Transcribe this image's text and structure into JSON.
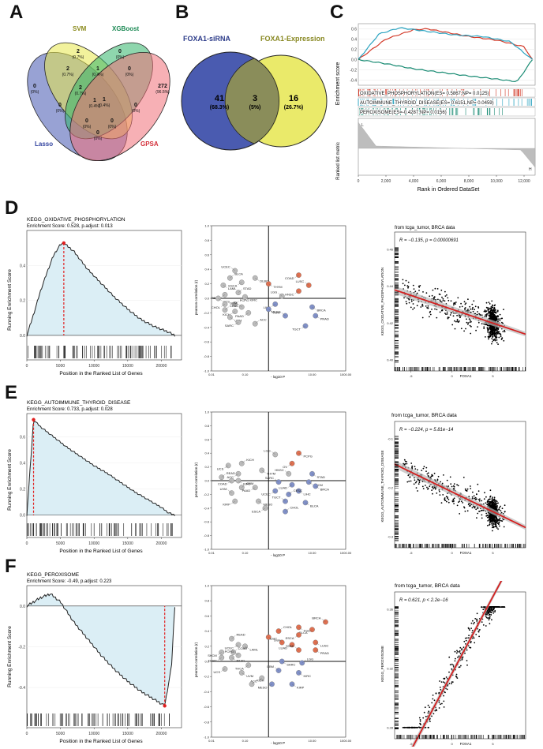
{
  "panel_letters": [
    "A",
    "B",
    "C",
    "D",
    "E",
    "F"
  ],
  "venn4": {
    "sets": [
      {
        "name": "SVM",
        "color": "#8b8b1e"
      },
      {
        "name": "XGBoost",
        "color": "#1d8a55"
      },
      {
        "name": "Lasso",
        "color": "#3344a0"
      },
      {
        "name": "GPSA",
        "color": "#d3303a"
      }
    ],
    "regions": [
      {
        "count": "2",
        "pct": "(0.7%)"
      },
      {
        "count": "0",
        "pct": "(0%)"
      },
      {
        "count": "2",
        "pct": "(0.7%)"
      },
      {
        "count": "1",
        "pct": "(0.4%)"
      },
      {
        "count": "0",
        "pct": "(0%)"
      },
      {
        "count": "0",
        "pct": "(0%)"
      },
      {
        "count": "2",
        "pct": "(0.7%)"
      },
      {
        "count": "1",
        "pct": "(0.4%)"
      },
      {
        "count": "272",
        "pct": "(96.5%)"
      },
      {
        "count": "0",
        "pct": "(0%)"
      },
      {
        "count": "1",
        "pct": "(0.4%)"
      },
      {
        "count": "0",
        "pct": "(0%)"
      },
      {
        "count": "0",
        "pct": "(0%)"
      },
      {
        "count": "0",
        "pct": "(0%)"
      },
      {
        "count": "0",
        "pct": "(0%)"
      }
    ]
  },
  "venn2": {
    "left": {
      "name": "FOXA1-siRNA",
      "count": "41",
      "pct": "(68.3%)",
      "color": "#4a5bb0"
    },
    "both": {
      "count": "3",
      "pct": "(5%)"
    },
    "right": {
      "name": "FOXA1-Expression",
      "count": "16",
      "pct": "(26.7%)",
      "color": "#e8e85a"
    }
  },
  "chart_data": [
    {
      "id": "C-gsea-multi",
      "type": "line",
      "ylabel": "Enrichment score",
      "ylabel2": "Ranked list metric",
      "xlabel": "Rank in Ordered DataSet",
      "xticks": [
        "0",
        "2,000",
        "4,000",
        "6,000",
        "8,000",
        "10,000",
        "12,000"
      ],
      "yticks": [
        "0.6",
        "0.4",
        "0.2",
        "0.0",
        "-0.2",
        "-0.4"
      ],
      "series": [
        {
          "name": "OXIDATIVE_PHOSPHORYLATION(ES= 0.5867,NP= 0.0125)",
          "color": "#d33b2a",
          "x": [
            0,
            2000,
            4000,
            5000,
            6000,
            8000,
            10000,
            12000,
            12600
          ],
          "y": [
            0,
            0.4,
            0.58,
            0.6,
            0.55,
            0.45,
            0.38,
            0.25,
            0
          ]
        },
        {
          "name": "AUTOIMMUNE_THYROID_DISEASE(ES= 0.6151,NP= 0.0459)",
          "color": "#2aa3c0",
          "x": [
            0,
            1500,
            3000,
            5000,
            7000,
            9000,
            11000,
            12600
          ],
          "y": [
            0,
            0.5,
            0.62,
            0.55,
            0.48,
            0.45,
            0.35,
            0
          ]
        },
        {
          "name": "PEROXISOME(ES=-0.4287,NP= 0.0156)",
          "color": "#178a72",
          "x": [
            0,
            2000,
            4000,
            6000,
            8000,
            10000,
            11500,
            12600
          ],
          "y": [
            0,
            -0.08,
            -0.18,
            -0.25,
            -0.32,
            -0.38,
            -0.43,
            0
          ]
        }
      ],
      "ranked_labels": [
        "L",
        "H"
      ]
    },
    {
      "id": "D-gsea",
      "type": "line",
      "title": "KEGG_OXIDATIVE_PHOSPHORYLATION",
      "subtitle": "Enrichment Score: 0.528, p.adjust: 0.013",
      "ylabel": "Running Enrichment Score",
      "xlabel": "Position in the Ranked List of Genes",
      "xticks": [
        "0",
        "5000",
        "10000",
        "15000",
        "20000"
      ],
      "yticks": [
        "0.0",
        "0.2",
        "0.4"
      ],
      "ylim": [
        -0.05,
        0.6
      ],
      "xlim": [
        0,
        23000
      ],
      "peak_x": 5500,
      "x": [
        0,
        1000,
        2000,
        3000,
        4000,
        5000,
        5500,
        7000,
        9000,
        11000,
        13000,
        15000,
        17000,
        19000,
        21000,
        22000
      ],
      "y": [
        0,
        0.12,
        0.25,
        0.36,
        0.46,
        0.52,
        0.528,
        0.48,
        0.38,
        0.3,
        0.22,
        0.15,
        0.09,
        0.05,
        0.02,
        0
      ]
    },
    {
      "id": "D-volcano",
      "type": "scatter",
      "xlabel": "- log10 P",
      "ylabel": "pearson correlation (r)",
      "xticks": [
        "0.01",
        "0.10",
        "10.00",
        "1000.00"
      ],
      "yticks": [
        "1.0",
        "0.8",
        "0.6",
        "0.4",
        "0.2",
        "0.0",
        "-0.2",
        "-0.4",
        "-0.6",
        "-0.8",
        "-1.0"
      ],
      "points": [
        {
          "label": "UCEC",
          "x": 0.7,
          "y": 0.38,
          "c": "#bbbbbb"
        },
        {
          "label": "DLBC",
          "x": 1.3,
          "y": 0.28,
          "c": "#bbbbbb"
        },
        {
          "label": "COAD",
          "x": 2.6,
          "y": 0.32,
          "c": "#e07050"
        },
        {
          "label": "BLCA",
          "x": 0.55,
          "y": 0.28,
          "c": "#bbbbbb"
        },
        {
          "label": "ESCA",
          "x": 0.9,
          "y": 0.22,
          "c": "#bbbbbb"
        },
        {
          "label": "THYM",
          "x": 1.7,
          "y": 0.2,
          "c": "#e07050"
        },
        {
          "label": "LUSC",
          "x": 2.9,
          "y": 0.18,
          "c": "#e07050"
        },
        {
          "label": "LAML",
          "x": 0.35,
          "y": 0.18,
          "c": "#bbbbbb"
        },
        {
          "label": "HNSC",
          "x": 2.6,
          "y": 0.1,
          "c": "#e07050"
        },
        {
          "label": "STAD",
          "x": 0.8,
          "y": 0.08,
          "c": "#bbbbbb"
        },
        {
          "label": "READ",
          "x": 0.4,
          "y": 0.05,
          "c": "#bbbbbb"
        },
        {
          "label": "KIRC",
          "x": 1.0,
          "y": 0.02,
          "c": "#bbbbbb"
        },
        {
          "label": "LGG",
          "x": 2.1,
          "y": 0.03,
          "c": "#bbbbbb"
        },
        {
          "label": "UCS",
          "x": 0.2,
          "y": 0.0,
          "c": "#bbbbbb"
        },
        {
          "label": "CHOL",
          "x": 0.4,
          "y": -0.08,
          "c": "#bbbbbb"
        },
        {
          "label": "PCPG",
          "x": 0.7,
          "y": -0.08,
          "c": "#bbbbbb"
        },
        {
          "label": "LIHC",
          "x": 1.9,
          "y": -0.08,
          "c": "#8090c8"
        },
        {
          "label": "BRCA",
          "x": 3.0,
          "y": -0.12,
          "c": "#8090c8"
        },
        {
          "label": "GBM",
          "x": 0.9,
          "y": -0.12,
          "c": "#bbbbbb"
        },
        {
          "label": "KIRP",
          "x": 1.7,
          "y": -0.15,
          "c": "#8090c8"
        },
        {
          "label": "KICH",
          "x": 0.7,
          "y": -0.18,
          "c": "#bbbbbb"
        },
        {
          "label": "CESC",
          "x": 0.4,
          "y": -0.16,
          "c": "#bbbbbb"
        },
        {
          "label": "PAAD",
          "x": 1.1,
          "y": -0.2,
          "c": "#bbbbbb"
        },
        {
          "label": "UVM",
          "x": 0.55,
          "y": -0.26,
          "c": "#bbbbbb"
        },
        {
          "label": "MESO",
          "x": 2.2,
          "y": -0.24,
          "c": "#8090c8"
        },
        {
          "label": "PRAD",
          "x": 3.1,
          "y": -0.24,
          "c": "#8090c8"
        },
        {
          "label": "SARC",
          "x": 0.8,
          "y": -0.33,
          "c": "#bbbbbb"
        },
        {
          "label": "ACC",
          "x": 1.3,
          "y": -0.35,
          "c": "#bbbbbb"
        },
        {
          "label": "TGCT",
          "x": 2.8,
          "y": -0.38,
          "c": "#8090c8"
        }
      ]
    },
    {
      "id": "D-scatter",
      "type": "scatter",
      "title": "from tcga_tumor, BRCA data",
      "stat": "R = −0.135, p = 0.00000691",
      "xlabel": "FOXA1",
      "ylabel": "KEGG_OXIDATIVE_PHOSPHORYLATION",
      "xticks": [
        "-5",
        "0",
        "5"
      ],
      "yticks": [
        "0.46",
        "0.44",
        "0.42",
        "0.40"
      ],
      "fit_color": "#d42020"
    },
    {
      "id": "E-gsea",
      "type": "line",
      "title": "KEGG_AUTOIMMUNE_THYROID_DISEASE",
      "subtitle": "Enrichment Score: 0.733, p.adjust: 0.028",
      "ylabel": "Running Enrichment Score",
      "xlabel": "Position in the Ranked List of Genes",
      "xticks": [
        "0",
        "5000",
        "10000",
        "15000",
        "20000"
      ],
      "yticks": [
        "0.0",
        "0.2",
        "0.4",
        "0.6"
      ],
      "ylim": [
        -0.05,
        0.78
      ],
      "xlim": [
        0,
        23000
      ],
      "peak_x": 1000,
      "x": [
        0,
        1000,
        2000,
        4000,
        6000,
        8000,
        10000,
        12000,
        14000,
        16000,
        18000,
        20000,
        21000,
        22000
      ],
      "y": [
        0,
        0.733,
        0.68,
        0.6,
        0.52,
        0.45,
        0.38,
        0.32,
        0.25,
        0.18,
        0.12,
        0.06,
        0.02,
        0
      ]
    },
    {
      "id": "E-volcano",
      "type": "scatter",
      "xlabel": "- log10 P",
      "ylabel": "pearson correlation (r)",
      "xticks": [
        "0.01",
        "0.10",
        "10.00",
        "1000.00"
      ],
      "yticks": [
        "1.0",
        "0.8",
        "0.6",
        "0.4",
        "0.2",
        "0.0",
        "-0.2",
        "-0.4",
        "-0.6",
        "-0.8",
        "-1.0"
      ],
      "points": [
        {
          "label": "LGG",
          "x": 1.9,
          "y": 0.38,
          "c": "#bbbbbb"
        },
        {
          "label": "PCPG",
          "x": 2.6,
          "y": 0.4,
          "c": "#e07050"
        },
        {
          "label": "OV",
          "x": 2.4,
          "y": 0.25,
          "c": "#e07050"
        },
        {
          "label": "KICH",
          "x": 0.9,
          "y": 0.25,
          "c": "#bbbbbb"
        },
        {
          "label": "UCS",
          "x": 0.5,
          "y": 0.22,
          "c": "#bbbbbb"
        },
        {
          "label": "THYM",
          "x": 1.5,
          "y": 0.15,
          "c": "#bbbbbb"
        },
        {
          "label": "HNSC",
          "x": 2.3,
          "y": 0.1,
          "c": "#bbbbbb"
        },
        {
          "label": "STAD",
          "x": 3.0,
          "y": 0.1,
          "c": "#8090c8"
        },
        {
          "label": "ACC",
          "x": 0.8,
          "y": 0.1,
          "c": "#bbbbbb"
        },
        {
          "label": "READ",
          "x": 0.3,
          "y": 0.05,
          "c": "#bbbbbb"
        },
        {
          "label": "COAD",
          "x": 0.6,
          "y": 0.0,
          "c": "#bbbbbb"
        },
        {
          "label": "KIRC",
          "x": 0.8,
          "y": 0.0,
          "c": "#bbbbbb"
        },
        {
          "label": "SARC",
          "x": 2.0,
          "y": -0.02,
          "c": "#8090c8"
        },
        {
          "label": "SKCM",
          "x": 2.9,
          "y": -0.02,
          "c": "#8090c8"
        },
        {
          "label": "LUAD",
          "x": 2.4,
          "y": -0.06,
          "c": "#8090c8"
        },
        {
          "label": "GBM",
          "x": 0.9,
          "y": -0.1,
          "c": "#bbbbbb"
        },
        {
          "label": "PAAD",
          "x": 1.3,
          "y": -0.1,
          "c": "#bbbbbb"
        },
        {
          "label": "BRCA",
          "x": 3.1,
          "y": -0.08,
          "c": "#8090c8"
        },
        {
          "label": "UVM",
          "x": 0.6,
          "y": -0.18,
          "c": "#bbbbbb"
        },
        {
          "label": "LIHC",
          "x": 2.6,
          "y": -0.15,
          "c": "#8090c8"
        },
        {
          "label": "UCEC",
          "x": 1.9,
          "y": -0.15,
          "c": "#8090c8"
        },
        {
          "label": "CESC",
          "x": 2.3,
          "y": -0.2,
          "c": "#8090c8"
        },
        {
          "label": "KIRP",
          "x": 0.7,
          "y": -0.3,
          "c": "#bbbbbb"
        },
        {
          "label": "MESO",
          "x": 1.4,
          "y": -0.3,
          "c": "#bbbbbb"
        },
        {
          "label": "TGCT",
          "x": 2.2,
          "y": -0.3,
          "c": "#8090c8"
        },
        {
          "label": "BLCA",
          "x": 2.8,
          "y": -0.32,
          "c": "#8090c8"
        },
        {
          "label": "ESCA",
          "x": 1.6,
          "y": -0.4,
          "c": "#bbbbbb"
        },
        {
          "label": "CHOL",
          "x": 2.2,
          "y": -0.45,
          "c": "#8090c8"
        }
      ]
    },
    {
      "id": "E-scatter",
      "type": "scatter",
      "title": "from tcga_tumor, BRCA data",
      "stat": "R = −0.224, p = 5.81e−14",
      "xlabel": "FOXA1",
      "ylabel": "KEGG_AUTOIMMUNE_THYROID_DISEASE",
      "xticks": [
        "-5",
        "0",
        "5"
      ],
      "yticks": [
        "-0.1",
        "-0.2",
        "-0.3"
      ],
      "fit_color": "#d42020"
    },
    {
      "id": "F-gsea",
      "type": "line",
      "title": "KEGG_PEROXISOME",
      "subtitle": "Enrichment Score: -0.49, p.adjust: 0.223",
      "ylabel": "Running Enrichment Score",
      "xlabel": "Position in the Ranked List of Genes",
      "xticks": [
        "0",
        "5000",
        "10000",
        "15000",
        "20000"
      ],
      "yticks": [
        "0.0",
        "-0.2",
        "-0.4"
      ],
      "ylim": [
        -0.52,
        0.1
      ],
      "xlim": [
        0,
        23000
      ],
      "peak_x": 20500,
      "x": [
        0,
        2000,
        3500,
        5000,
        7000,
        9000,
        11000,
        13000,
        15000,
        17000,
        19000,
        20500,
        21500,
        22000
      ],
      "y": [
        0,
        0.04,
        0.06,
        0.02,
        -0.08,
        -0.16,
        -0.24,
        -0.31,
        -0.37,
        -0.42,
        -0.46,
        -0.49,
        -0.3,
        0
      ]
    },
    {
      "id": "F-volcano",
      "type": "scatter",
      "xlabel": "- log10 P",
      "ylabel": "pearson correlation (r)",
      "xticks": [
        "0.01",
        "0.10",
        "10.00",
        "1000.00"
      ],
      "yticks": [
        "1.0",
        "0.8",
        "0.6",
        "0.4",
        "0.2",
        "0.0",
        "-0.2",
        "-0.4",
        "-0.6",
        "-0.8",
        "-1.0"
      ],
      "points": [
        {
          "label": "BRCA",
          "x": 3.4,
          "y": 0.52,
          "c": "#e07050"
        },
        {
          "label": "TGCT",
          "x": 2.6,
          "y": 0.45,
          "c": "#e07050"
        },
        {
          "label": "BLCA",
          "x": 3.0,
          "y": 0.42,
          "c": "#e07050"
        },
        {
          "label": "CHOL",
          "x": 2.0,
          "y": 0.4,
          "c": "#e07050"
        },
        {
          "label": "ESCA",
          "x": 2.6,
          "y": 0.35,
          "c": "#e07050"
        },
        {
          "label": "THYM",
          "x": 1.7,
          "y": 0.32,
          "c": "#e07050"
        },
        {
          "label": "LIHC",
          "x": 2.1,
          "y": 0.25,
          "c": "#e07050"
        },
        {
          "label": "LUSC",
          "x": 3.1,
          "y": 0.25,
          "c": "#e07050"
        },
        {
          "label": "LUAD",
          "x": 2.4,
          "y": 0.22,
          "c": "#e07050"
        },
        {
          "label": "READ",
          "x": 0.6,
          "y": 0.3,
          "c": "#bbbbbb"
        },
        {
          "label": "UCEC",
          "x": 0.8,
          "y": 0.22,
          "c": "#bbbbbb"
        },
        {
          "label": "LAML",
          "x": 1.0,
          "y": 0.2,
          "c": "#bbbbbb"
        },
        {
          "label": "STAD",
          "x": 2.6,
          "y": 0.15,
          "c": "#e07050"
        },
        {
          "label": "PRAD",
          "x": 3.1,
          "y": 0.15,
          "c": "#e07050"
        },
        {
          "label": "SKCM",
          "x": 0.3,
          "y": 0.12,
          "c": "#bbbbbb"
        },
        {
          "label": "COAD",
          "x": 0.65,
          "y": 0.12,
          "c": "#bbbbbb"
        },
        {
          "label": "DLBC",
          "x": 0.3,
          "y": 0.05,
          "c": "#bbbbbb"
        },
        {
          "label": "PAAD",
          "x": 0.6,
          "y": 0.05,
          "c": "#bbbbbb"
        },
        {
          "label": "PCPG",
          "x": 0.8,
          "y": 0.08,
          "c": "#bbbbbb"
        },
        {
          "label": "SARC",
          "x": 2.1,
          "y": 0.0,
          "c": "#8090c8"
        },
        {
          "label": "THCA",
          "x": 1.1,
          "y": -0.05,
          "c": "#bbbbbb"
        },
        {
          "label": "LGG",
          "x": 2.7,
          "y": -0.02,
          "c": "#8090c8"
        },
        {
          "label": "UCS",
          "x": 0.4,
          "y": -0.1,
          "c": "#bbbbbb"
        },
        {
          "label": "UVM",
          "x": 0.9,
          "y": -0.15,
          "c": "#bbbbbb"
        },
        {
          "label": "GBM",
          "x": 2.0,
          "y": -0.12,
          "c": "#8090c8"
        },
        {
          "label": "KIRC",
          "x": 2.6,
          "y": -0.15,
          "c": "#8090c8"
        },
        {
          "label": "ACC",
          "x": 1.5,
          "y": -0.22,
          "c": "#bbbbbb"
        },
        {
          "label": "KICH",
          "x": 1.2,
          "y": -0.3,
          "c": "#bbbbbb"
        },
        {
          "label": "MESO",
          "x": 1.8,
          "y": -0.3,
          "c": "#8090c8"
        },
        {
          "label": "KIRP",
          "x": 2.4,
          "y": -0.3,
          "c": "#8090c8"
        }
      ]
    },
    {
      "id": "F-scatter",
      "type": "scatter",
      "title": "from tcga_tumor, BRCA data",
      "stat": "R = 0.621, p < 2.2e−16",
      "xlabel": "FOXA1",
      "ylabel": "KEGG_PEROXISOME",
      "xticks": [
        "-5",
        "0",
        "5"
      ],
      "yticks": [
        "0.36",
        "0.32",
        "0.28"
      ],
      "fit_color": "#d42020"
    }
  ]
}
